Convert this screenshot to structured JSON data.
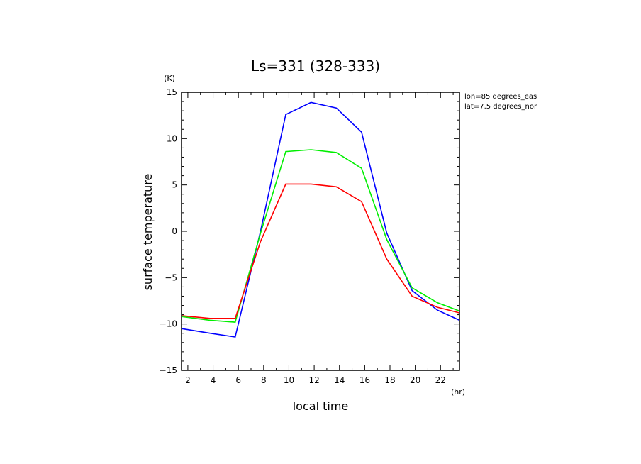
{
  "chart_data": {
    "type": "line",
    "title": "Ls=331 (328-333)",
    "xlabel": "local time",
    "ylabel": "surface temperature",
    "x_unit": "(hr)",
    "y_unit": "(K)",
    "xlim": [
      1.5,
      23.5
    ],
    "ylim": [
      -15,
      15
    ],
    "xticks": [
      2,
      4,
      6,
      8,
      10,
      12,
      14,
      16,
      18,
      20,
      22
    ],
    "yticks": [
      -15,
      -10,
      -5,
      0,
      5,
      10,
      15
    ],
    "grid": false,
    "annotations": [
      "lon=85 degrees_eas",
      "lat=7.5 degrees_nor"
    ],
    "x": [
      1.5,
      3.75,
      5.75,
      7.75,
      9.75,
      11.75,
      13.75,
      15.75,
      17.75,
      19.75,
      21.75,
      23.5
    ],
    "series": [
      {
        "color": "#0000ff",
        "values": [
          -10.5,
          -11.0,
          -11.4,
          0.0,
          12.6,
          13.9,
          13.3,
          10.7,
          -0.2,
          -6.4,
          -8.5,
          -9.6
        ]
      },
      {
        "color": "#00ee00",
        "values": [
          -9.2,
          -9.6,
          -9.8,
          -0.2,
          8.6,
          8.8,
          8.5,
          6.8,
          -0.9,
          -6.1,
          -7.7,
          -8.6
        ]
      },
      {
        "color": "#ff0000",
        "values": [
          -9.1,
          -9.4,
          -9.4,
          -1.1,
          5.1,
          5.1,
          4.8,
          3.2,
          -3.0,
          -7.0,
          -8.2,
          -8.8
        ]
      }
    ]
  }
}
